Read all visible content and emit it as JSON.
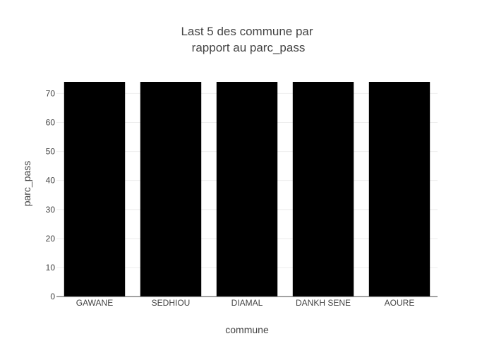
{
  "chart_data": {
    "type": "bar",
    "title_lines": [
      "Last 5 des commune par",
      "rapport au parc_pass"
    ],
    "xlabel": "commune",
    "ylabel": "parc_pass",
    "categories": [
      "GAWANE",
      "SEDHIOU",
      "DIAMAL",
      "DANKH SENE",
      "AOURE"
    ],
    "values": [
      74,
      74,
      74,
      74,
      74
    ],
    "ylim": [
      0,
      74
    ],
    "yticks": [
      0,
      10,
      20,
      30,
      40,
      50,
      60,
      70
    ],
    "grid": true,
    "legend": "none",
    "colors": {
      "bar": "#000000",
      "grid": "#eeeeee",
      "axis_line": "#444444",
      "text": "#444444",
      "background": "#ffffff"
    }
  }
}
